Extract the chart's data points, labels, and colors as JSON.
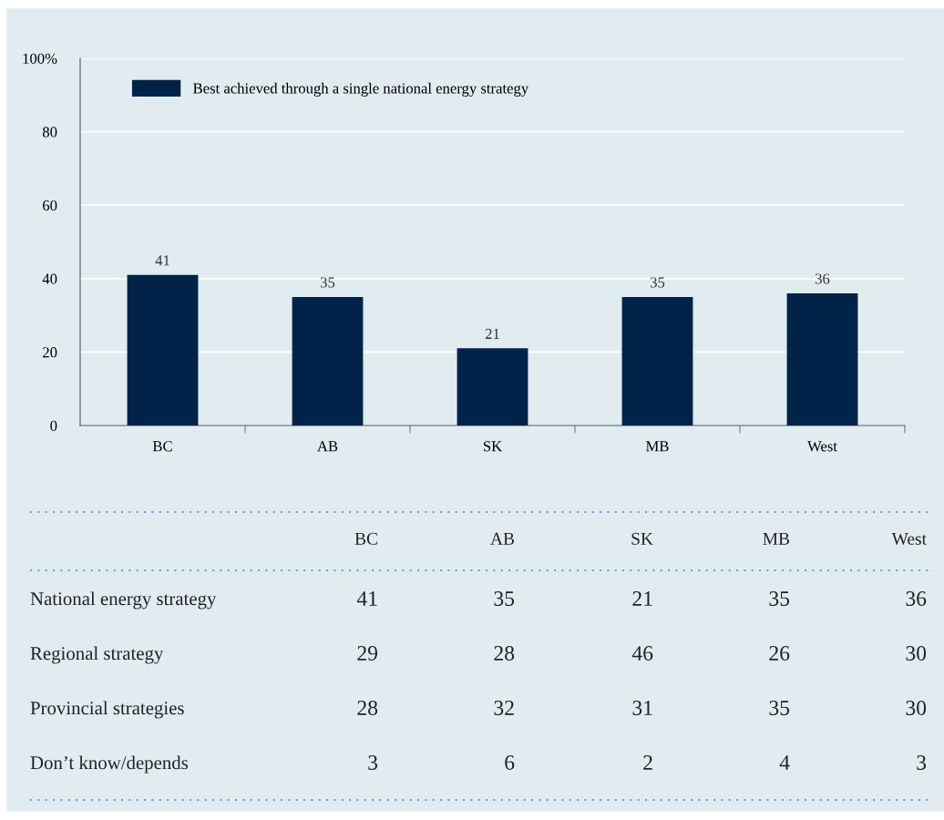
{
  "chart_data": [
    {
      "type": "bar",
      "categories": [
        "BC",
        "AB",
        "SK",
        "MB",
        "West"
      ],
      "series": [
        {
          "name": "Best achieved through a single national energy strategy",
          "color": "#00234a",
          "values": [
            41,
            35,
            21,
            35,
            36
          ]
        }
      ],
      "ylim": [
        0,
        100
      ],
      "yticks": [
        0,
        20,
        40,
        60,
        80,
        {
          "value": 100,
          "label": "100%"
        }
      ],
      "grid": "y",
      "legend": "top left",
      "data_labels": true
    },
    {
      "type": "other",
      "data_labels": true,
      "categories": [
        "BC",
        "AB",
        "SK",
        "MB",
        "West"
      ],
      "series": [
        {
          "name": "National energy strategy",
          "values": [
            41,
            35,
            21,
            35,
            36
          ]
        },
        {
          "name": "Regional strategy",
          "values": [
            29,
            28,
            46,
            26,
            30
          ]
        },
        {
          "name": "Provincial strategies",
          "values": [
            28,
            32,
            31,
            35,
            30
          ]
        },
        {
          "name": "Don’t know/depends",
          "values": [
            3,
            6,
            2,
            4,
            3
          ]
        }
      ]
    }
  ]
}
